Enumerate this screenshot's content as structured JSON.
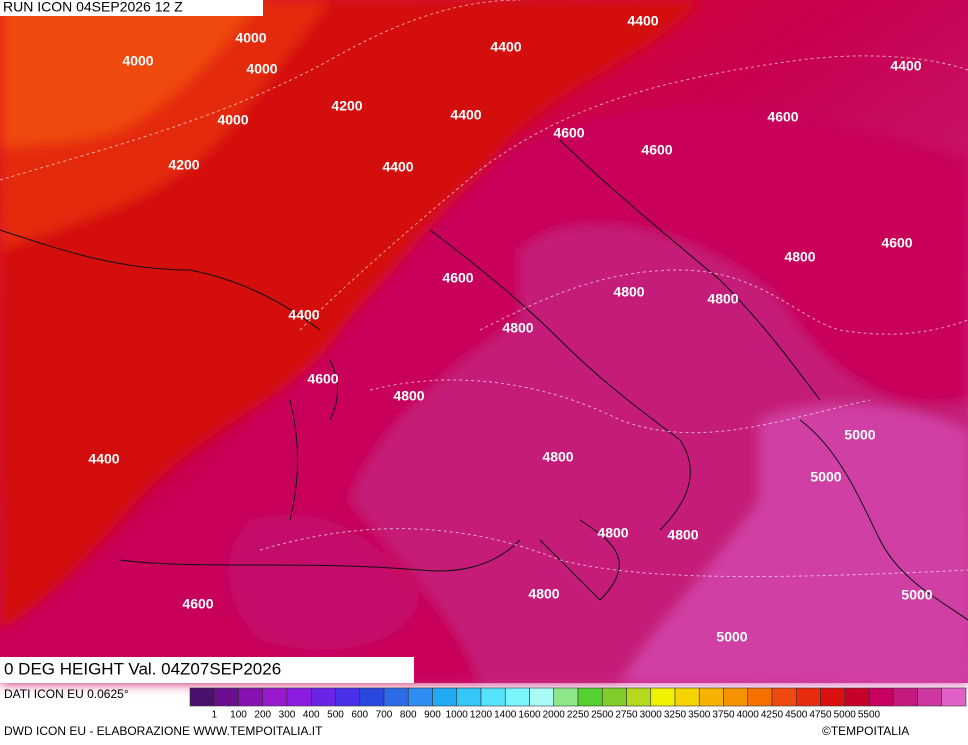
{
  "header": {
    "title": "RUN ICON 04SEP2026 12 Z"
  },
  "map": {
    "subtitle": "0 DEG HEIGHT Val. 04Z07SEP2026",
    "contour_labels": [
      4000,
      4000,
      4000,
      4400,
      4400,
      4400,
      4200,
      4000,
      4400,
      4600,
      4600,
      4200,
      4400,
      4600,
      4600,
      4800,
      4600,
      4800,
      4800,
      4400,
      4800,
      4600,
      4800,
      5000,
      4400,
      4800,
      5000,
      4800,
      4800,
      4800,
      4600,
      5000,
      5000
    ]
  },
  "legend": {
    "source": "DATI ICON EU 0.0625°",
    "colors": [
      "#4b0f6e",
      "#6a0d8f",
      "#8710b0",
      "#9a19cf",
      "#8a1de0",
      "#6a24e6",
      "#4a30e8",
      "#2a48e0",
      "#2d6ce6",
      "#2f8cf0",
      "#22aaf5",
      "#33c8f8",
      "#55e4fb",
      "#7af5fb",
      "#aafaf5",
      "#8ee88a",
      "#55d033",
      "#7fcc2a",
      "#b4d91e",
      "#f2f200",
      "#f5d400",
      "#f5b300",
      "#f59400",
      "#f57000",
      "#f04a10",
      "#e82c10",
      "#dc1010",
      "#c8002c",
      "#c80060",
      "#c41a80",
      "#cc38a0",
      "#e060c8"
    ],
    "labels": [
      1,
      100,
      200,
      300,
      400,
      500,
      600,
      700,
      800,
      900,
      1000,
      1200,
      1400,
      1600,
      2000,
      2250,
      2500,
      2750,
      3000,
      3250,
      3500,
      3750,
      4000,
      4250,
      4500,
      4750,
      5000,
      5500
    ]
  },
  "footer": {
    "credit": "DWD ICON EU - ELABORAZIONE WWW.TEMPOITALIA.IT",
    "copyright": "©TEMPOITALIA"
  }
}
